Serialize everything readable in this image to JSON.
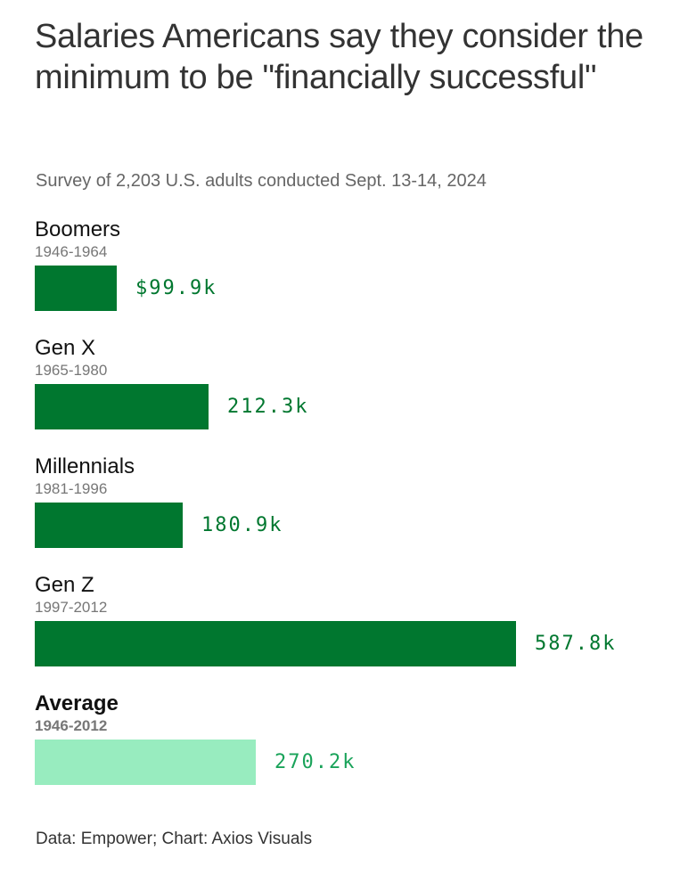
{
  "chart_data": {
    "type": "bar",
    "orientation": "horizontal",
    "title": "Salaries Americans say they consider the minimum to be \"financially successful\"",
    "subtitle": "Survey of 2,203 U.S. adults conducted Sept. 13-14, 2024",
    "source": "Data: Empower; Chart: Axios Visuals",
    "unit": "thousands of US dollars",
    "categories": [
      "Boomers",
      "Gen X",
      "Millennials",
      "Gen Z",
      "Average"
    ],
    "years": [
      "1946-1964",
      "1965-1980",
      "1981-1996",
      "1997-2012",
      "1946-2012"
    ],
    "values": [
      99.9,
      212.3,
      180.9,
      587.8,
      270.2
    ],
    "value_labels": [
      "$99.9k",
      "212.3k",
      "180.9k",
      "587.8k",
      "270.2k"
    ],
    "xlim": [
      0,
      600
    ],
    "grid": false,
    "colors": {
      "bar": "#00772f",
      "average_bar": "#98ecbf",
      "label": "#00772f",
      "average_label": "#1aa35a"
    }
  }
}
